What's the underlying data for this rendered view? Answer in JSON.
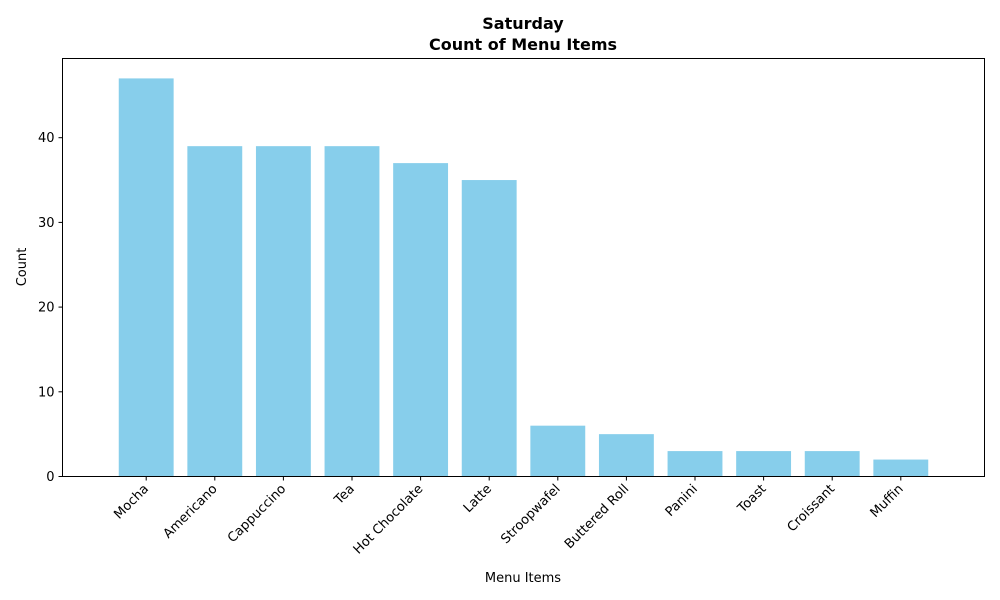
{
  "chart_data": {
    "type": "bar",
    "title": "Saturday",
    "subtitle": "Count of Menu Items",
    "xlabel": "Menu Items",
    "ylabel": "Count",
    "categories": [
      "Mocha",
      "Americano",
      "Cappuccino",
      "Tea",
      "Hot Chocolate",
      "Latte",
      "Stroopwafel",
      "Buttered Roll",
      "Panini",
      "Toast",
      "Croissant",
      "Muffin"
    ],
    "values": [
      47,
      39,
      39,
      39,
      37,
      35,
      6,
      5,
      3,
      3,
      3,
      2
    ],
    "ylim": [
      0,
      49.35
    ],
    "yticks": [
      0,
      10,
      20,
      30,
      40
    ],
    "bar_color": "#87ceeb",
    "grid": false,
    "legend": "none"
  }
}
